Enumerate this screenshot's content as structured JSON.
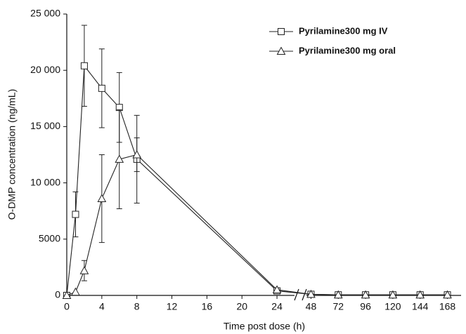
{
  "chart_data": {
    "type": "line",
    "x_label": "Time post dose (h)",
    "y_label": "O-DMP concentration (ng/mL)",
    "x": [
      0,
      1,
      2,
      4,
      6,
      8,
      24,
      48,
      72,
      96,
      120,
      144,
      168
    ],
    "x_segments": [
      [
        0,
        26
      ],
      [
        44,
        172
      ]
    ],
    "xticks": [
      0,
      4,
      8,
      12,
      16,
      20,
      24,
      48,
      72,
      96,
      120,
      144,
      168
    ],
    "ylim": [
      0,
      25000
    ],
    "yticks": [
      {
        "value": 0,
        "label": "0"
      },
      {
        "value": 5000,
        "label": "5000"
      },
      {
        "value": 10000,
        "label": "10 000"
      },
      {
        "value": 15000,
        "label": "15 000"
      },
      {
        "value": 20000,
        "label": "20 000"
      },
      {
        "value": 25000,
        "label": "25 000"
      }
    ],
    "legend": "top-right",
    "series": [
      {
        "name": "Pyrilamine300 mg IV",
        "marker": "square",
        "color": "#222222",
        "values": [
          0,
          7200,
          20400,
          18400,
          16700,
          12100,
          400,
          100,
          50,
          50,
          50,
          50,
          50
        ],
        "errors": [
          null,
          2000,
          3600,
          3500,
          3100,
          3900,
          null,
          null,
          null,
          null,
          null,
          null,
          null
        ]
      },
      {
        "name": "Pyrilamine300 mg oral",
        "marker": "triangle",
        "color": "#222222",
        "values": [
          0,
          300,
          2200,
          8600,
          12100,
          12500,
          500,
          100,
          50,
          50,
          50,
          50,
          50
        ],
        "errors": [
          null,
          null,
          900,
          3900,
          4400,
          1500,
          null,
          null,
          null,
          null,
          null,
          null,
          null
        ]
      }
    ]
  }
}
